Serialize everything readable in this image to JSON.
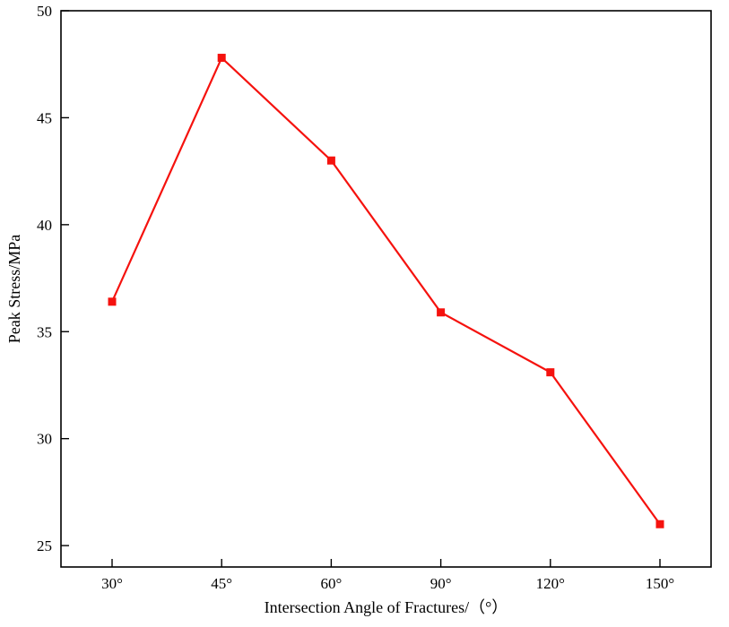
{
  "chart_data": {
    "type": "line",
    "title": "",
    "categories": [
      "30°",
      "45°",
      "60°",
      "90°",
      "120°",
      "150°"
    ],
    "values": [
      36.4,
      47.8,
      43.0,
      35.9,
      33.1,
      26.0
    ],
    "xlabel": "Intersection Angle of Fractures/（°）",
    "ylabel": "Peak Stress/MPa",
    "ylim": [
      24,
      50
    ],
    "yticks": [
      25,
      30,
      35,
      40,
      45,
      50
    ],
    "grid": false,
    "legend": "none",
    "line_color": "#f5120e",
    "marker": "square",
    "marker_color": "#f5120e",
    "axis_color": "#000000"
  }
}
